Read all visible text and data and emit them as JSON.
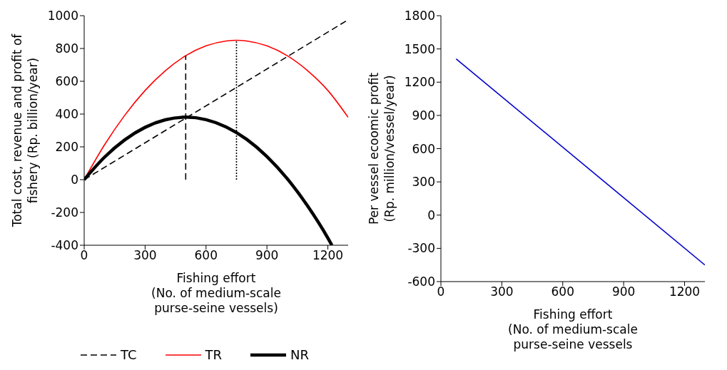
{
  "chart_data": [
    {
      "type": "line",
      "xlabel": "Fishing effort\n(No. of medium-scale\npurse-seine vessels)",
      "ylabel": "Total cost, revenue and profit of\nfishery (Rp. billion/year)",
      "xlim": [
        0,
        1300
      ],
      "xticks": [
        0,
        300,
        600,
        900,
        1200
      ],
      "ylim": [
        -400,
        1000
      ],
      "yticks": [
        -400,
        -200,
        0,
        200,
        400,
        600,
        800,
        1000
      ],
      "grid": false,
      "legend": "bottom",
      "marker": "none",
      "series": [
        {
          "name": "TC",
          "color": "#000000",
          "line_style": "dashed",
          "x": [
            0,
            1300
          ],
          "values": [
            0,
            975
          ]
        },
        {
          "name": "TR",
          "color": "#ff0000",
          "line_style": "solid",
          "x": [
            0,
            100,
            200,
            300,
            400,
            500,
            600,
            700,
            750,
            800,
            900,
            1000,
            1100,
            1200,
            1300
          ],
          "values": [
            0,
            212,
            393,
            544,
            665,
            756,
            816,
            846,
            850,
            846,
            816,
            756,
            665,
            544,
            380
          ]
        },
        {
          "name": "NR",
          "color": "#000000",
          "line_style": "solid",
          "x": [
            0,
            100,
            200,
            300,
            400,
            500,
            600,
            700,
            800,
            900,
            1000,
            1100,
            1200,
            1220
          ],
          "values": [
            0,
            137,
            243,
            319,
            365,
            381,
            366,
            321,
            246,
            141,
            6,
            -160,
            -356,
            -400
          ]
        },
        {
          "color": "#000000",
          "line_style": "dashed",
          "x": [
            500,
            500
          ],
          "values": [
            0,
            756
          ]
        },
        {
          "color": "#000000",
          "line_style": "dotted",
          "x": [
            750,
            750
          ],
          "values": [
            0,
            850
          ]
        }
      ]
    },
    {
      "type": "line",
      "xlabel": "Fishing effort\n(No. of medium-scale\npurse-seine vessels",
      "ylabel": "Per vessel ecoomic profit\n(Rp. million/vessel/year)",
      "xlim": [
        0,
        1300
      ],
      "xticks": [
        0,
        300,
        600,
        900,
        1200
      ],
      "ylim": [
        -600,
        1800
      ],
      "yticks": [
        -600,
        -300,
        0,
        300,
        600,
        900,
        1200,
        1500,
        1800
      ],
      "grid": false,
      "marker": "none",
      "series": [
        {
          "color": "#0000cc",
          "line_style": "solid",
          "x": [
            75,
            1300
          ],
          "values": [
            1410,
            -450
          ]
        }
      ]
    }
  ]
}
